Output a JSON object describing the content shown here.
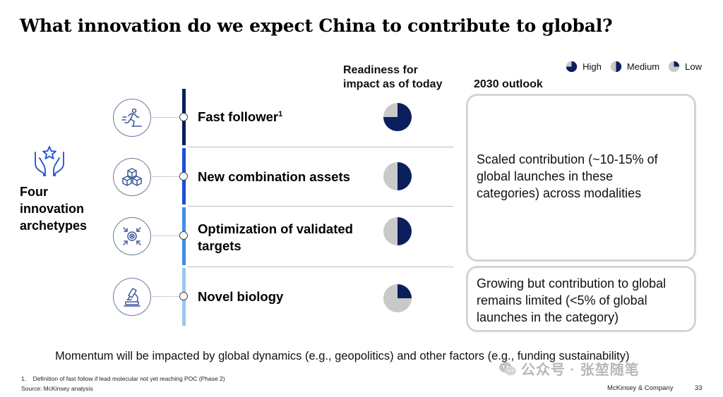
{
  "title": "What innovation do we expect China to contribute to global?",
  "legend": {
    "high": "High",
    "medium": "Medium",
    "low": "Low"
  },
  "columns": {
    "readiness_line1": "Readiness for",
    "readiness_line2": "impact as of today",
    "outlook": "2030 outlook"
  },
  "archetypes": {
    "label_line1": "Four",
    "label_line2": "innovation",
    "label_line3": "archetypes",
    "icon": "hands-star-icon"
  },
  "rows": [
    {
      "label": "Fast follower",
      "footnote_mark": "1",
      "icon": "runner-icon",
      "readiness": "high",
      "readiness_fraction": 0.75,
      "bar_color": "#0a1f5c"
    },
    {
      "label": "New combination assets",
      "footnote_mark": "",
      "icon": "cubes-icon",
      "readiness": "medium",
      "readiness_fraction": 0.5,
      "bar_color": "#1a4fd6"
    },
    {
      "label_line1": "Optimization of validated",
      "label_line2": "targets",
      "footnote_mark": "",
      "icon": "target-icon",
      "readiness": "medium",
      "readiness_fraction": 0.5,
      "bar_color": "#3f8ee6"
    },
    {
      "label": "Novel biology",
      "footnote_mark": "",
      "icon": "microscope-icon",
      "readiness": "low",
      "readiness_fraction": 0.25,
      "bar_color": "#9cc6f0"
    }
  ],
  "outlook": {
    "box1_line1": "Scaled contribution (~10-15% of",
    "box1_line2": "global launches in these",
    "box1_line3": "categories) across modalities",
    "box2_line1": "Growing but contribution to global",
    "box2_line2": "remains limited (<5% of global",
    "box2_line3": "launches in the category)"
  },
  "momentum": "Momentum will be impacted by global dynamics (e.g., geopolitics) and other factors (e.g., funding sustainability)",
  "footnote": "1.    Definition of fast follow if lead molecular not yet reaching POC (Phase 2)",
  "source": "Source: McKinsey analysis",
  "company": "McKinsey & Company",
  "page_number": "33",
  "watermark": "公众号 · 张堃随笔",
  "colors": {
    "navy": "#0a1f5c",
    "pie_gray": "#c9c9c9",
    "box_border": "#d4d4d4"
  }
}
